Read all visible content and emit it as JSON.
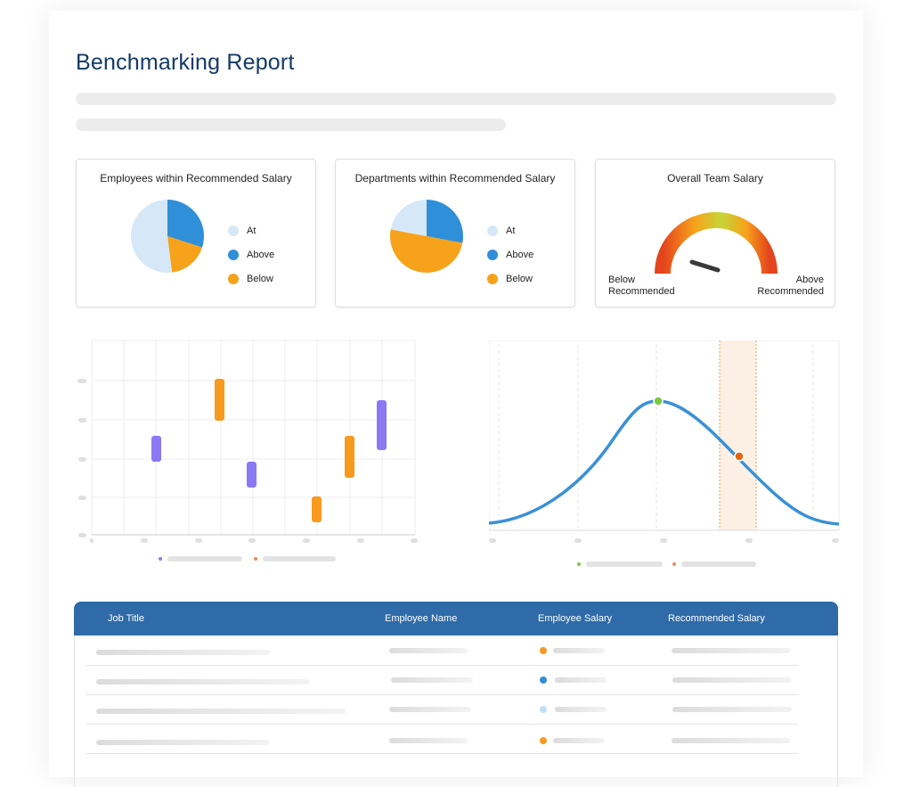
{
  "report": {
    "title": "Benchmarking Report"
  },
  "colors": {
    "at": "#d6e8f7",
    "above": "#2f8fd8",
    "below": "#f7a21b",
    "purple": "#8b78f3",
    "orange": "#f79a1e",
    "curve": "#3a91d6",
    "green": "#7ac943",
    "header": "#2f6ba8"
  },
  "cards": {
    "employees": {
      "title": "Employees within Recommended Salary",
      "legend": [
        "At",
        "Above",
        "Below"
      ]
    },
    "departments": {
      "title": "Departments within Recommended Salary",
      "legend": [
        "At",
        "Above",
        "Below"
      ]
    },
    "team": {
      "title": "Overall Team Salary",
      "left_label_1": "Below",
      "left_label_2": "Recommended",
      "right_label_1": "Above",
      "right_label_2": "Recommended"
    }
  },
  "chart_data": [
    {
      "type": "pie",
      "categories": [
        "At",
        "Above",
        "Below"
      ],
      "values": [
        52,
        30,
        18
      ]
    },
    {
      "type": "pie",
      "categories": [
        "At",
        "Above",
        "Below"
      ],
      "values": [
        22,
        28,
        50
      ]
    }
  ],
  "table": {
    "headers": [
      "Job Title",
      "Employee Name",
      "Employee Salary",
      "Recommended Salary"
    ],
    "row_status": [
      "below",
      "above",
      "at",
      "below"
    ]
  }
}
